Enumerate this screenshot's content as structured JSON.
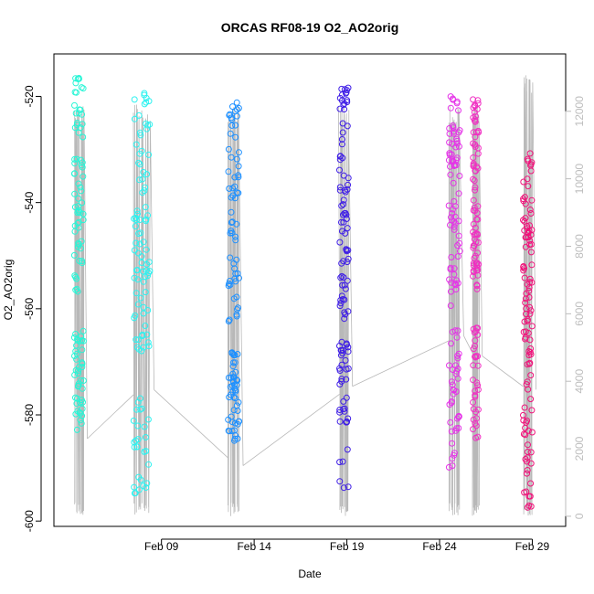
{
  "chart_data": {
    "type": "scatter",
    "title": "ORCAS RF08-19 O2_AO2orig",
    "xlabel": "Date",
    "ylabel": "O2_AO2orig",
    "x_ticks": [
      "Feb 09",
      "Feb 14",
      "Feb 19",
      "Feb 24",
      "Feb 29"
    ],
    "x_tick_days": [
      9,
      14,
      19,
      24,
      29
    ],
    "xlim_days": [
      3.2,
      30.8
    ],
    "y_ticks": [
      -520,
      -540,
      -560,
      -580,
      -600
    ],
    "ylim": [
      -601,
      -512
    ],
    "y2_ticks": [
      0,
      2000,
      4000,
      6000,
      8000,
      10000,
      12000
    ],
    "y2lim": [
      -300,
      13700
    ],
    "colors": {
      "trace": "#b8b8b8",
      "axis": "#000000",
      "y2_axis": "#bdbdbd"
    },
    "series": [
      {
        "color": "#29f5d6",
        "date_range": [
          "Feb 04",
          "Feb 05"
        ],
        "flight_days": [
          4.3,
          4.8
        ],
        "o2_range": [
          -583,
          -515
        ],
        "o2_clusters": [
          [
            -515,
            -557,
            0.6
          ],
          [
            -564,
            -583,
            0.4
          ]
        ],
        "altitude_range_m": [
          0,
          12200
        ],
        "end_altitude_m": 2300
      },
      {
        "color": "#2ef2f0",
        "date_range": [
          "Feb 07",
          "Feb 08"
        ],
        "flight_days": [
          7.5,
          8.4
        ],
        "o2_range": [
          -595,
          -519
        ],
        "o2_clusters": [
          [
            -519,
            -540,
            0.25
          ],
          [
            -540,
            -568,
            0.5
          ],
          [
            -576,
            -595,
            0.25
          ]
        ],
        "altitude_range_m": [
          0,
          12200
        ],
        "end_altitude_m": 3750
      },
      {
        "color": "#1e90ff",
        "date_range": [
          "Feb 12",
          "Feb 13"
        ],
        "flight_days": [
          12.6,
          13.2
        ],
        "o2_range": [
          -585,
          -521
        ],
        "o2_clusters": [
          [
            -521,
            -563,
            0.55
          ],
          [
            -567,
            -585,
            0.45
          ]
        ],
        "altitude_range_m": [
          0,
          12200
        ],
        "end_altitude_m": 1500
      },
      {
        "color": "#3f1ee6",
        "date_range": [
          "Feb 18",
          "Feb 19"
        ],
        "flight_days": [
          18.6,
          19.1
        ],
        "o2_range": [
          -594,
          -517
        ],
        "o2_clusters": [
          [
            -517,
            -562,
            0.65
          ],
          [
            -565,
            -582,
            0.3
          ],
          [
            -586,
            -594,
            0.05
          ]
        ],
        "altitude_range_m": [
          0,
          12200
        ],
        "end_altitude_m": 3850
      },
      {
        "color": "#e533e8",
        "date_range": [
          "Feb 24",
          "Feb 25"
        ],
        "flight_days": [
          24.5,
          25.1
        ],
        "o2_range": [
          -590,
          -520
        ],
        "o2_clusters": [
          [
            -520,
            -560,
            0.65
          ],
          [
            -564,
            -590,
            0.35
          ]
        ],
        "altitude_range_m": [
          0,
          12200
        ],
        "end_altitude_m": 5350
      },
      {
        "color": "#f02fc2",
        "date_range": [
          "Feb 25",
          "Feb 26"
        ],
        "flight_days": [
          25.8,
          26.1
        ],
        "o2_range": [
          -585,
          -520
        ],
        "o2_clusters": [
          [
            -520,
            -558,
            0.7
          ],
          [
            -563,
            -585,
            0.3
          ]
        ],
        "altitude_range_m": [
          0,
          12200
        ],
        "end_altitude_m": 4750
      },
      {
        "color": "#f0127a",
        "date_range": [
          "Feb 28",
          "Feb 29"
        ],
        "flight_days": [
          28.5,
          29.0
        ],
        "o2_range": [
          -598,
          -530
        ],
        "o2_clusters": [
          [
            -530,
            -565,
            0.6
          ],
          [
            -565,
            -598,
            0.4
          ]
        ],
        "altitude_range_m": [
          0,
          13100
        ],
        "end_altitude_m": 3750
      }
    ]
  }
}
